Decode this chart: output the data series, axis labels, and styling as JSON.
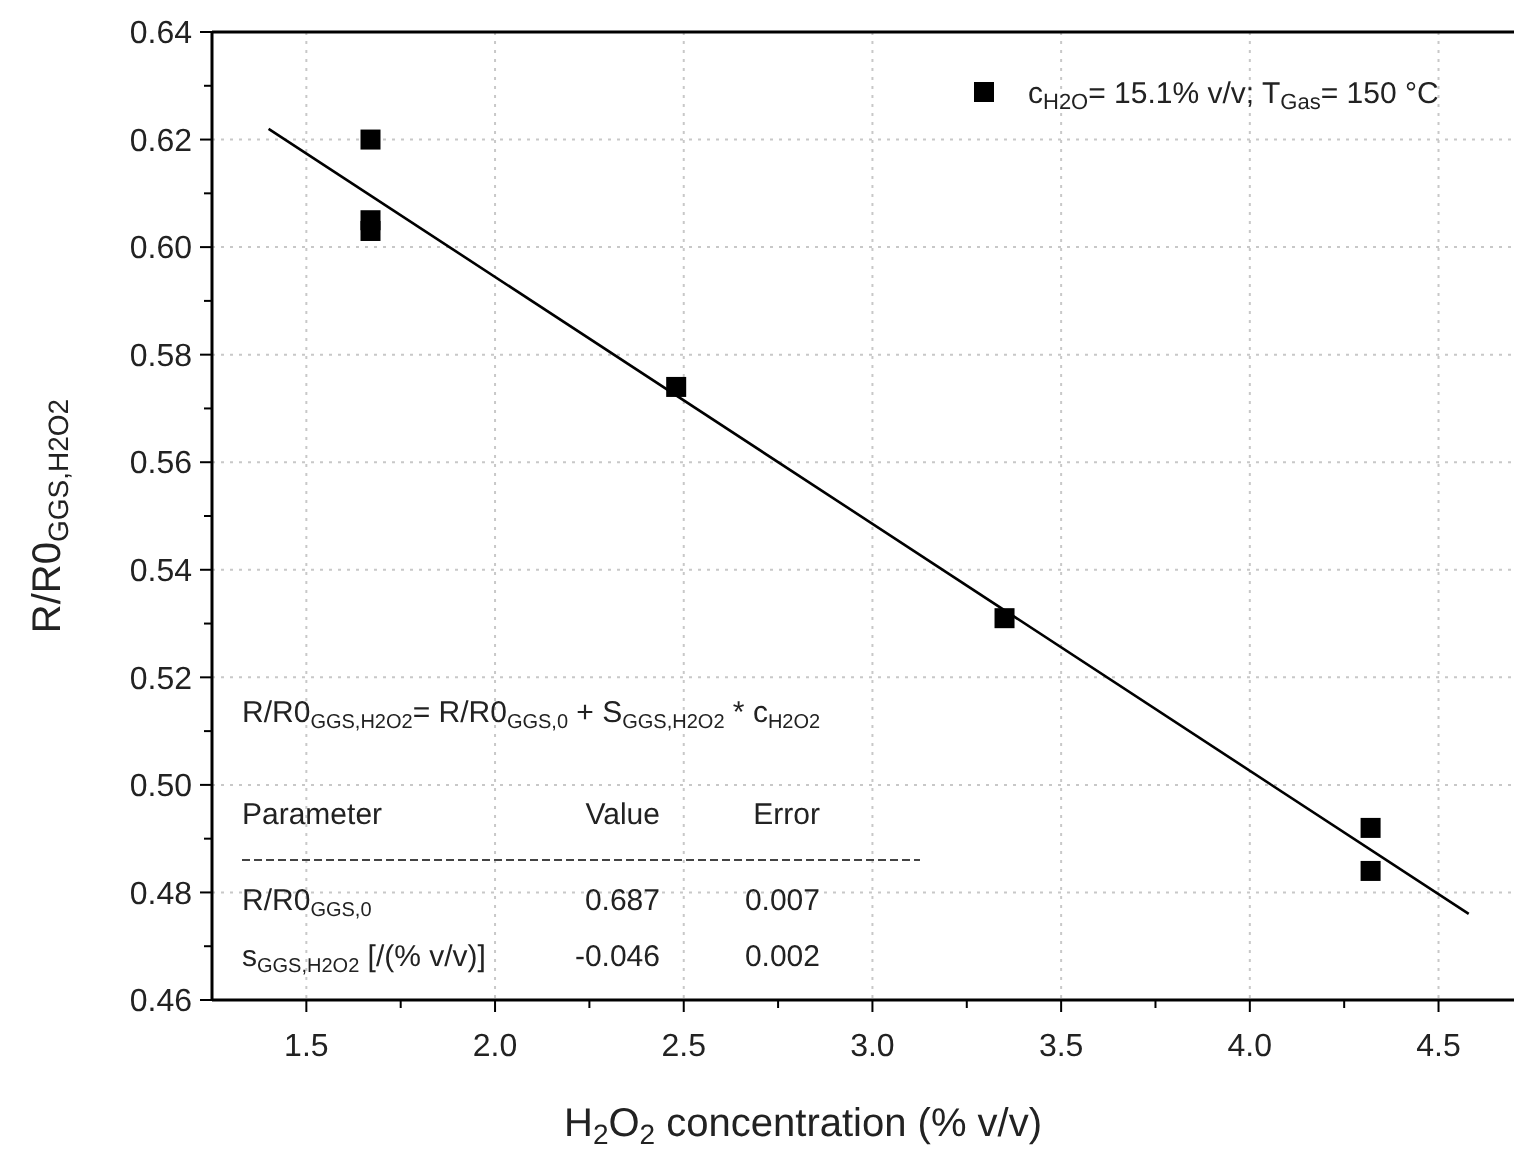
{
  "chart_data": {
    "type": "scatter",
    "xlabel": "H$_{2}$O$_{2}$ concentration (% v/v)",
    "ylabel": "R/R0$_{GGS,H2O2}$",
    "xlim": [
      1.25,
      4.7
    ],
    "ylim": [
      0.46,
      0.64
    ],
    "xticks": [
      1.5,
      {
        "value": 1.75,
        "label": null
      },
      {
        "value": 2,
        "label": "2.0"
      },
      {
        "value": 2.25,
        "label": null
      },
      2.5,
      {
        "value": 2.75,
        "label": null
      },
      {
        "value": 3,
        "label": "3.0"
      },
      {
        "value": 3.25,
        "label": null
      },
      3.5,
      {
        "value": 3.75,
        "label": null
      },
      {
        "value": 4,
        "label": "4.0"
      },
      {
        "value": 4.25,
        "label": null
      },
      4.5
    ],
    "yticks": [
      {
        "value": 0.46,
        "label": "0.46"
      },
      {
        "value": 0.47,
        "label": null
      },
      {
        "value": 0.48,
        "label": "0.48"
      },
      {
        "value": 0.49,
        "label": null
      },
      {
        "value": 0.5,
        "label": "0.50"
      },
      {
        "value": 0.51,
        "label": null
      },
      {
        "value": 0.52,
        "label": "0.52"
      },
      {
        "value": 0.53,
        "label": null
      },
      {
        "value": 0.54,
        "label": "0.54"
      },
      {
        "value": 0.55,
        "label": null
      },
      {
        "value": 0.56,
        "label": "0.56"
      },
      {
        "value": 0.57,
        "label": null
      },
      {
        "value": 0.58,
        "label": "0.58"
      },
      {
        "value": 0.59,
        "label": null
      },
      {
        "value": 0.6,
        "label": "0.60"
      },
      {
        "value": 0.61,
        "label": null
      },
      {
        "value": 0.62,
        "label": "0.62"
      },
      {
        "value": 0.63,
        "label": null
      },
      {
        "value": 0.64,
        "label": "0.64"
      }
    ],
    "grid": true,
    "legend": "top right",
    "series": [
      {
        "name": "c$_{H2O}$= 15.1% v/v; T$_{Gas}$= 150 °C",
        "color": "#000000",
        "marker": "square",
        "x": [
          1.67,
          1.67,
          1.67,
          2.48,
          3.35,
          4.32,
          4.32
        ],
        "values": [
          0.62,
          0.605,
          0.603,
          0.574,
          0.531,
          0.492,
          0.484
        ]
      },
      {
        "type": "line",
        "color": "#000000",
        "marker": "none",
        "x": [
          1.4,
          4.58
        ],
        "values": [
          0.622,
          0.476
        ]
      }
    ],
    "annotations": [
      "R/R0$_{GGS,H2O2}$= R/R0$_{GGS,0}$ + S$_{GGS,H2O2}$ * c$_{H2O2}$",
      "Parameter",
      "Value",
      "Error",
      "R/R0$_{GGS,0}$",
      "0.687",
      "0.007",
      "s$_{GGS,H2O2}$ [/(% v/v)]",
      "-0.046",
      "0.002"
    ]
  }
}
